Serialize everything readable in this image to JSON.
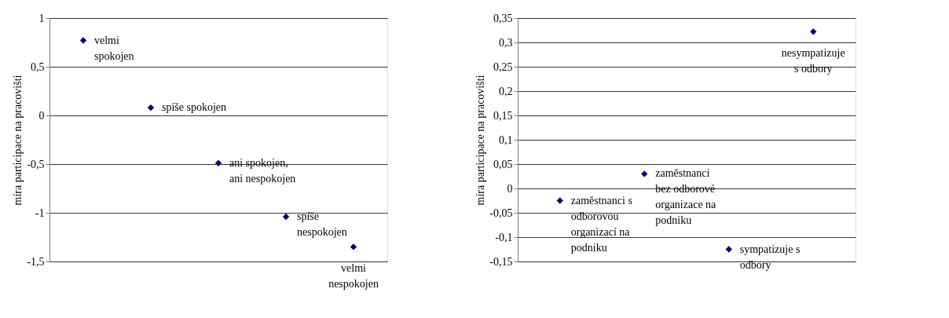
{
  "chart_data": [
    {
      "type": "scatter",
      "ylabel": "míra participace na pracovišti",
      "categories": [
        null,
        null,
        null,
        null,
        null
      ],
      "series": [
        {
          "color": "#000080",
          "values": [
            0.77,
            0.08,
            -0.49,
            -1.04,
            -1.35
          ]
        }
      ],
      "ylim": [
        -1.5,
        1
      ],
      "yticks": [
        {
          "value": -1.5,
          "label": "-1,5"
        },
        {
          "value": -1,
          "label": "-1"
        },
        {
          "value": -0.5,
          "label": "-0,5"
        },
        {
          "value": 0,
          "label": "0"
        },
        {
          "value": 0.5,
          "label": "0,5"
        },
        {
          "value": 1,
          "label": "1"
        }
      ],
      "annotations": [
        "velmi\nspokojen",
        "spíše spokojen",
        "ani spokojen,\nani nespokojen",
        "spíše\nnespokojen",
        "velmi\nnespokojen"
      ],
      "grid": "y",
      "marker": "diamond",
      "tick_labels": "y",
      "legend": false
    },
    {
      "type": "scatter",
      "ylabel": "míra participace na pracovišti",
      "categories": [
        null,
        null,
        null,
        null
      ],
      "series": [
        {
          "color": "#000080",
          "values": [
            -0.025,
            0.03,
            -0.125,
            0.322
          ]
        }
      ],
      "ylim": [
        -0.15,
        0.35
      ],
      "yticks": [
        {
          "value": -0.15,
          "label": "-0,15"
        },
        {
          "value": -0.1,
          "label": "-0,1"
        },
        {
          "value": -0.05,
          "label": "-0,05"
        },
        {
          "value": 0,
          "label": "0"
        },
        {
          "value": 0.05,
          "label": "0,05"
        },
        {
          "value": 0.1,
          "label": "0,1"
        },
        {
          "value": 0.15,
          "label": "0,15"
        },
        {
          "value": 0.2,
          "label": "0,2"
        },
        {
          "value": 0.25,
          "label": "0,25"
        },
        {
          "value": 0.3,
          "label": "0,3"
        },
        {
          "value": 0.35,
          "label": "0,35"
        }
      ],
      "annotations": [
        "zaměstnanci s\nodborovou\norganizací na\npodniku",
        "zaměstnanci\nbez odborové\norganizace na\npodniku",
        "sympatizuje s\nodbory",
        "nesympatizuje\ns odbory"
      ],
      "grid": "y",
      "marker": "diamond",
      "tick_labels": "y",
      "legend": false
    }
  ]
}
